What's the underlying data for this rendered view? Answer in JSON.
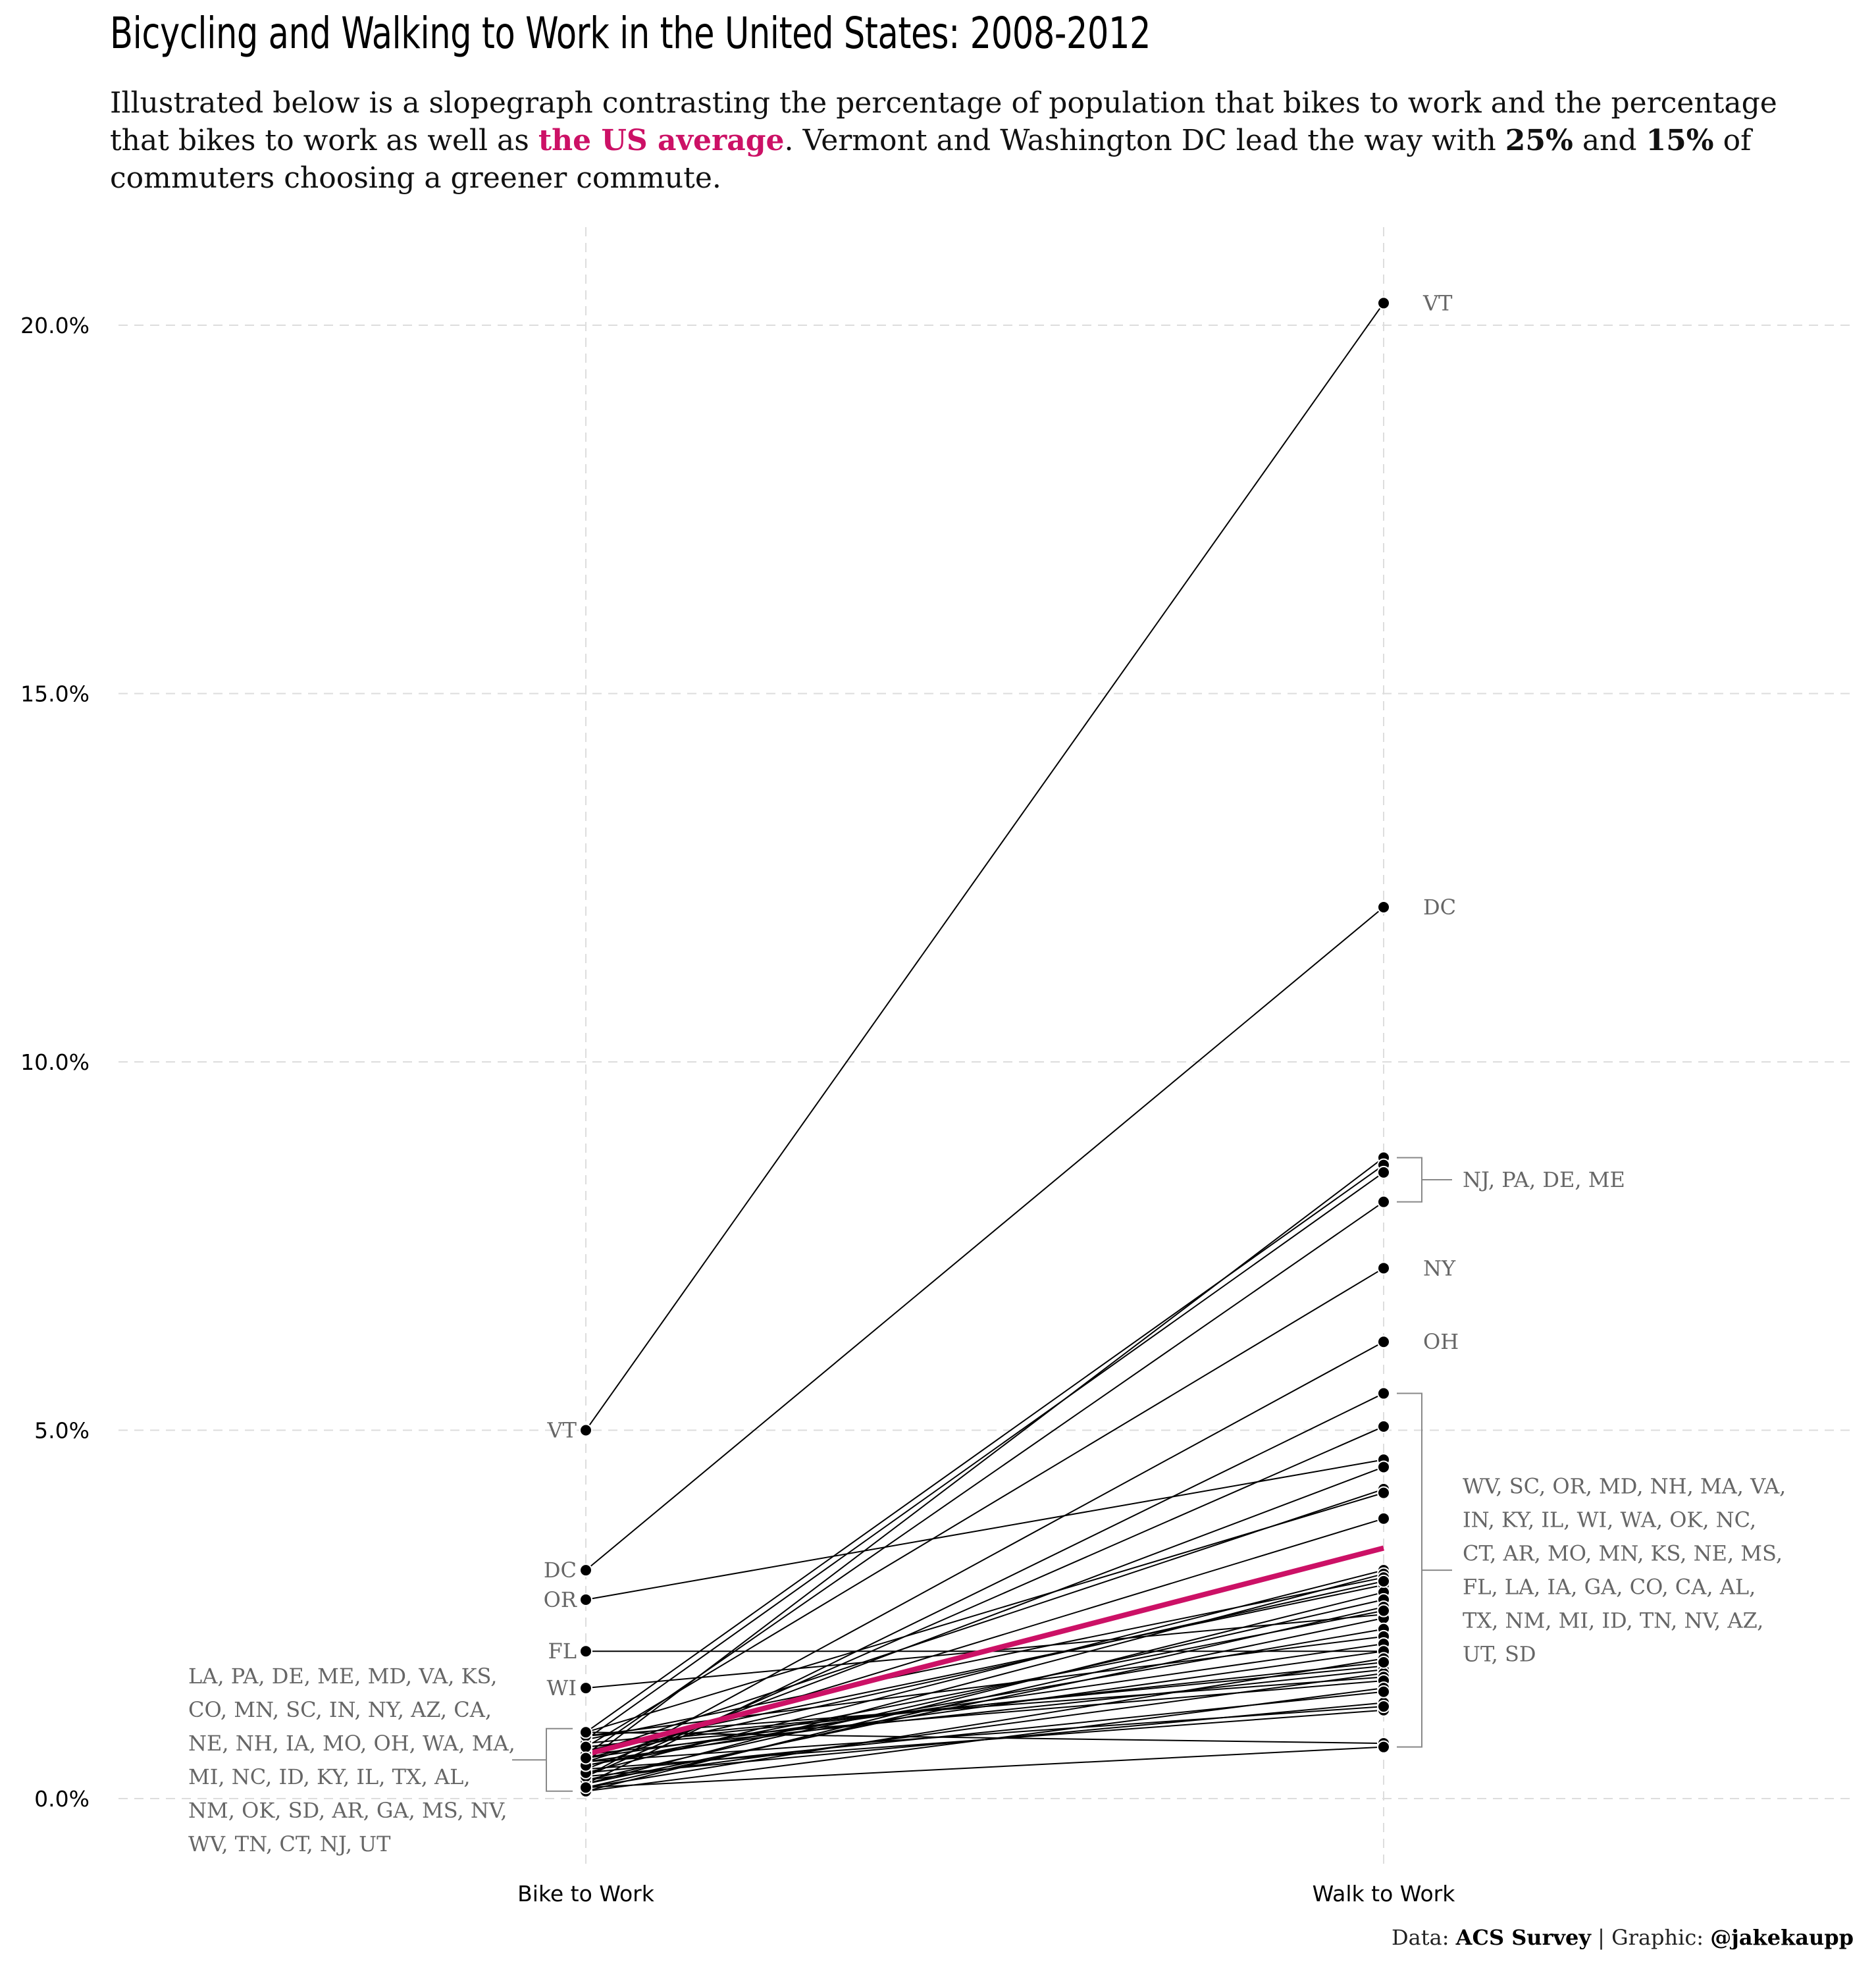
{
  "title": "Bicycling and Walking to Work in the United States: 2008-2012",
  "subtitle": {
    "part1": "Illustrated below is a slopegraph contrasting the percentage of population that bikes to work and the percentage that bikes to work as well as ",
    "highlight": "the US average",
    "part2": ". Vermont and Washington DC lead the way with ",
    "bold1": "25%",
    "part3": " and ",
    "bold2": "15%",
    "part4": " of commuters choosing a greener commute."
  },
  "caption": {
    "prefix": "Data: ",
    "source": "ACS Survey",
    "middle": " | Graphic: ",
    "author": "@jakekaupp"
  },
  "colors": {
    "highlight": "#cc1166",
    "line": "#000000",
    "label": "#666666",
    "grid": "#dddddd"
  },
  "chart_data": {
    "type": "line",
    "categories": [
      "Bike to Work",
      "Walk to Work"
    ],
    "ylim": [
      -0.5,
      21
    ],
    "yticks": [
      0,
      5,
      10,
      15,
      20
    ],
    "ytick_labels": [
      "0.0%",
      "5.0%",
      "10.0%",
      "15.0%",
      "20.0%"
    ],
    "grid": true,
    "xlabel": "",
    "ylabel": "",
    "series": [
      {
        "name": "VT",
        "values": [
          5.0,
          20.3
        ]
      },
      {
        "name": "DC",
        "values": [
          3.1,
          12.1
        ]
      },
      {
        "name": "OR",
        "values": [
          2.7,
          4.6
        ]
      },
      {
        "name": "FL",
        "values": [
          2.0,
          2.0
        ]
      },
      {
        "name": "WI",
        "values": [
          1.5,
          2.5
        ]
      },
      {
        "name": "NJ",
        "values": [
          0.5,
          8.7
        ]
      },
      {
        "name": "PA",
        "values": [
          0.9,
          8.6
        ]
      },
      {
        "name": "DE",
        "values": [
          0.8,
          8.5
        ]
      },
      {
        "name": "ME",
        "values": [
          0.6,
          8.1
        ]
      },
      {
        "name": "NY",
        "values": [
          0.7,
          7.2
        ]
      },
      {
        "name": "OH",
        "values": [
          0.3,
          6.2
        ]
      },
      {
        "name": "WV",
        "values": [
          0.2,
          5.5
        ]
      },
      {
        "name": "SC",
        "values": [
          0.3,
          5.05
        ]
      },
      {
        "name": "MD",
        "values": [
          0.4,
          4.5
        ]
      },
      {
        "name": "NH",
        "values": [
          0.6,
          4.2
        ]
      },
      {
        "name": "MA",
        "values": [
          0.9,
          4.15
        ]
      },
      {
        "name": "VA",
        "values": [
          0.5,
          3.8
        ]
      },
      {
        "name": "IN",
        "values": [
          0.35,
          3.1
        ]
      },
      {
        "name": "KY",
        "values": [
          0.2,
          3.05
        ]
      },
      {
        "name": "IL",
        "values": [
          0.8,
          3.0
        ]
      },
      {
        "name": "WA",
        "values": [
          0.65,
          2.9
        ]
      },
      {
        "name": "OK",
        "values": [
          0.1,
          2.8
        ]
      },
      {
        "name": "NC",
        "values": [
          0.25,
          2.7
        ]
      },
      {
        "name": "CT",
        "values": [
          0.15,
          2.6
        ]
      },
      {
        "name": "AR",
        "values": [
          0.2,
          2.45
        ]
      },
      {
        "name": "MO",
        "values": [
          0.45,
          2.3
        ]
      },
      {
        "name": "MN",
        "values": [
          0.85,
          2.2
        ]
      },
      {
        "name": "KS",
        "values": [
          0.55,
          2.1
        ]
      },
      {
        "name": "NE",
        "values": [
          0.5,
          2.0
        ]
      },
      {
        "name": "MS",
        "values": [
          0.15,
          1.9
        ]
      },
      {
        "name": "LA",
        "values": [
          0.75,
          1.8
        ]
      },
      {
        "name": "IA",
        "values": [
          0.6,
          1.75
        ]
      },
      {
        "name": "GA",
        "values": [
          0.25,
          1.7
        ]
      },
      {
        "name": "CO",
        "values": [
          0.85,
          1.65
        ]
      },
      {
        "name": "CA",
        "values": [
          0.7,
          1.6
        ]
      },
      {
        "name": "AL",
        "values": [
          0.1,
          1.5
        ]
      },
      {
        "name": "TX",
        "values": [
          0.3,
          1.3
        ]
      },
      {
        "name": "NM",
        "values": [
          0.4,
          1.2
        ]
      },
      {
        "name": "MI",
        "values": [
          0.5,
          1.25
        ]
      },
      {
        "name": "ID",
        "values": [
          0.9,
          0.75
        ]
      },
      {
        "name": "TN",
        "values": [
          0.15,
          0.7
        ]
      },
      {
        "name": "NV",
        "values": [
          0.35,
          1.45
        ]
      },
      {
        "name": "AZ",
        "values": [
          0.7,
          1.85
        ]
      },
      {
        "name": "UT",
        "values": [
          0.45,
          2.55
        ]
      },
      {
        "name": "SD",
        "values": [
          0.55,
          2.95
        ]
      },
      {
        "name": "US average",
        "values": [
          0.6,
          3.4
        ],
        "highlight": true
      }
    ],
    "left_labels": [
      {
        "text": "VT",
        "value": 5.0
      },
      {
        "text": "DC",
        "value": 3.1
      },
      {
        "text": "OR",
        "value": 2.7
      },
      {
        "text": "FL",
        "value": 2.0
      },
      {
        "text": "WI",
        "value": 1.5
      }
    ],
    "right_labels": [
      {
        "text": "VT",
        "value": 20.3
      },
      {
        "text": "DC",
        "value": 12.1
      },
      {
        "text": "NY",
        "value": 7.2
      },
      {
        "text": "OH",
        "value": 6.2
      }
    ],
    "left_group": {
      "lines": [
        "LA, PA, DE, ME, MD, VA, KS,",
        "CO, MN, SC, IN, NY, AZ, CA,",
        "NE, NH, IA, MO, OH, WA, MA,",
        "MI, NC, ID, KY, IL, TX, AL,",
        "NM, OK, SD, AR, GA, MS, NV,",
        "WV, TN, CT, NJ, UT"
      ],
      "range": [
        0.1,
        0.95
      ]
    },
    "right_groups": [
      {
        "lines": [
          "NJ, PA, DE, ME"
        ],
        "range": [
          8.1,
          8.7
        ]
      },
      {
        "lines": [
          "WV, SC, OR, MD, NH, MA, VA,",
          "IN, KY, IL, WI, WA, OK, NC,",
          "CT, AR, MO, MN, KS, NE, MS,",
          "FL, LA, IA, GA, CO, CA, AL,",
          "TX, NM, MI, ID, TN, NV, AZ,",
          "UT, SD"
        ],
        "range": [
          0.7,
          5.5
        ]
      }
    ]
  }
}
